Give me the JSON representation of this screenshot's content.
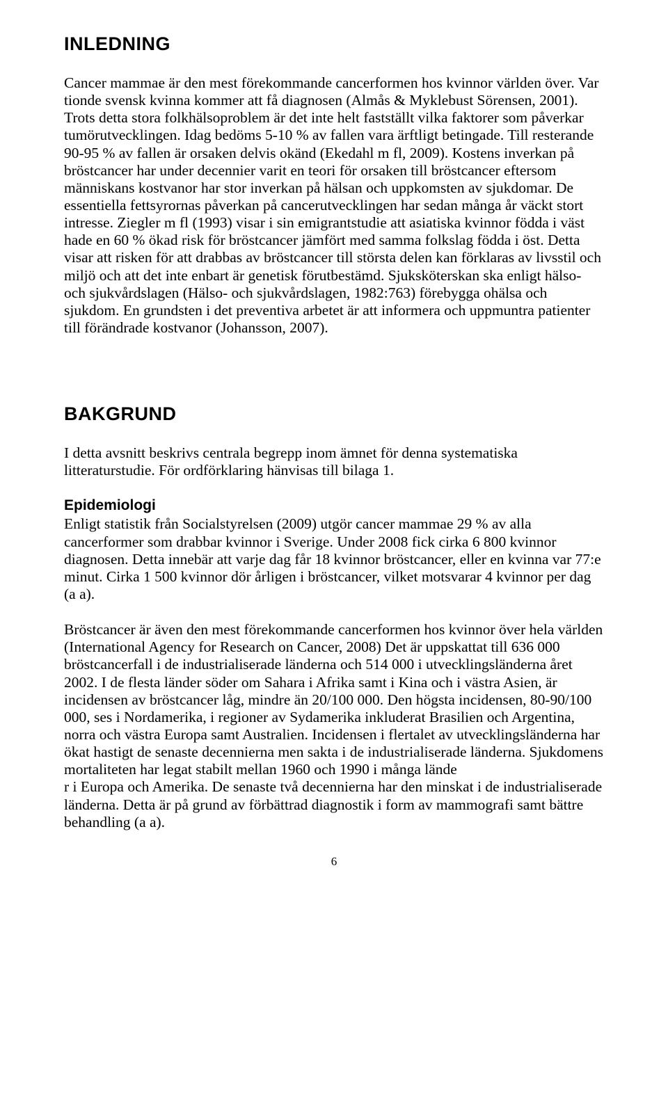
{
  "doc": {
    "heading1": "INLEDNING",
    "para1": "Cancer mammae är den mest förekommande cancerformen hos kvinnor världen över. Var tionde svensk kvinna kommer att få diagnosen (Almås & Myklebust Sörensen, 2001). Trots detta stora folkhälsoproblem är det inte helt fastställt vilka faktorer som påverkar tumörutvecklingen. Idag bedöms 5-10 % av fallen vara ärftligt betingade. Till resterande 90-95 % av fallen är orsaken delvis okänd (Ekedahl m fl, 2009). Kostens inverkan på bröstcancer har under decennier varit en teori för orsaken till bröstcancer eftersom människans kostvanor har stor inverkan på hälsan och uppkomsten av sjukdomar. De essentiella fettsyrornas påverkan på cancerutvecklingen har sedan många år väckt stort intresse. Ziegler m fl (1993) visar i sin emigrantstudie att asiatiska kvinnor födda i väst hade en 60 % ökad risk för bröstcancer jämfört med samma folkslag födda i öst. Detta visar att risken för att drabbas av bröstcancer till största delen kan förklaras av livsstil och miljö och att det inte enbart är genetisk förutbestämd. Sjuksköterskan ska enligt hälso- och sjukvårdslagen (Hälso- och sjukvårdslagen, 1982:763) förebygga ohälsa och sjukdom. En grundsten i det preventiva arbetet är att informera och uppmuntra patienter till förändrade kostvanor (Johansson, 2007).",
    "heading2": "BAKGRUND",
    "para2": "I detta avsnitt beskrivs centrala begrepp inom ämnet för denna systematiska litteraturstudie. För ordförklaring hänvisas till bilaga 1.",
    "subheading1": "Epidemiologi",
    "para3": "Enligt statistik från Socialstyrelsen (2009) utgör cancer mammae 29 % av alla cancerformer som drabbar kvinnor i Sverige. Under 2008 fick cirka 6 800 kvinnor diagnosen. Detta innebär att varje dag får 18 kvinnor bröstcancer, eller en kvinna var 77:e minut. Cirka 1 500 kvinnor dör årligen i bröstcancer, vilket motsvarar 4 kvinnor per dag (a a).",
    "para4": "Bröstcancer är även den mest förekommande cancerformen hos kvinnor över hela världen (International Agency for Research on Cancer, 2008) Det är uppskattat till 636 000 bröstcancerfall i de industrialiserade länderna och 514 000 i utvecklingsländerna året 2002. I de flesta länder söder om Sahara i Afrika samt i Kina och i västra Asien, är incidensen av bröstcancer låg, mindre än 20/100 000. Den högsta incidensen, 80-90/100 000, ses i Nordamerika, i regioner av Sydamerika inkluderat Brasilien och Argentina, norra och västra Europa samt Australien. Incidensen i flertalet av utvecklingsländerna har ökat hastigt de senaste decennierna men sakta i de industrialiserade länderna. Sjukdomens mortaliteten har legat stabilt mellan 1960 och 1990 i många lände",
    "para5": "r i Europa och Amerika. De senaste två decennierna har den minskat i de industrialiserade länderna. Detta är på grund av förbättrad diagnostik i form av mammografi samt bättre behandling (a a).",
    "pageNumber": "6"
  }
}
